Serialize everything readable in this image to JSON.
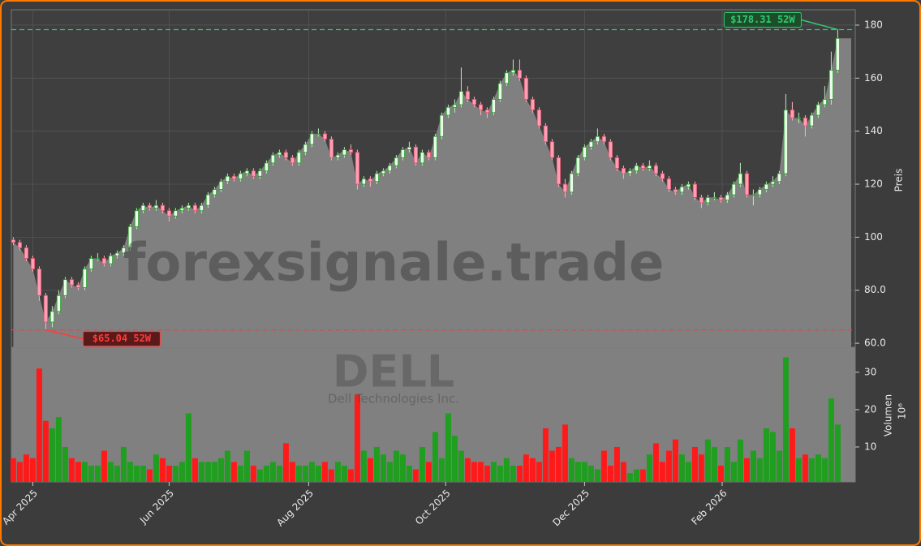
{
  "chart_data": {
    "type": "candlestick",
    "watermark": "forexsignale.trade",
    "symbol": "DELL",
    "company": "Dell Technologies Inc.",
    "ylabel": "Preis",
    "volume_label": "Volumen",
    "volume_exponent": "10⁶",
    "xlim": [
      -0.3,
      129.7
    ],
    "xticks": [
      {
        "value": 3,
        "label": "Apr 2025"
      },
      {
        "value": 24,
        "label": "Jun 2025"
      },
      {
        "value": 45.5,
        "label": "Aug 2025"
      },
      {
        "value": 66.6,
        "label": "Oct 2025"
      },
      {
        "value": 88,
        "label": "Dec 2025"
      },
      {
        "value": 109.2,
        "label": "Feb 2026"
      }
    ],
    "ylim": [
      58.5,
      185.8
    ],
    "yticks": [
      {
        "value": 60,
        "label": "60.0"
      },
      {
        "value": 80,
        "label": "80.0"
      },
      100,
      120,
      140,
      160,
      180
    ],
    "vlim": [
      0.65,
      36.7
    ],
    "vticks": [
      10,
      20,
      30
    ],
    "grid": true,
    "up_color": "#1f9e1f",
    "down_color": "#ff1a1a",
    "up_body": "#eafbea",
    "down_body": "#ff9fb4",
    "fill_color": "#808080",
    "ohlc": [
      [
        99,
        100,
        97,
        98
      ],
      [
        98,
        99,
        95,
        96
      ],
      [
        96,
        97,
        91,
        92
      ],
      [
        92,
        93,
        87,
        88
      ],
      [
        88,
        89,
        76,
        78
      ],
      [
        78,
        79,
        65.04,
        68
      ],
      [
        68,
        74,
        66,
        72
      ],
      [
        72,
        80,
        71,
        78
      ],
      [
        78,
        85,
        77,
        84
      ],
      [
        84,
        85,
        81,
        82
      ],
      [
        82,
        83,
        80,
        81
      ],
      [
        81,
        89,
        80,
        88
      ],
      [
        88,
        93,
        87,
        92
      ],
      [
        92,
        94,
        91,
        92
      ],
      [
        92,
        93,
        89,
        90
      ],
      [
        90,
        94,
        89,
        93
      ],
      [
        93,
        95,
        92,
        94
      ],
      [
        94,
        97,
        93,
        96
      ],
      [
        96,
        105,
        95,
        104
      ],
      [
        104,
        111,
        103,
        110
      ],
      [
        110,
        113,
        109,
        112
      ],
      [
        112,
        113,
        110,
        111
      ],
      [
        111,
        114,
        110,
        112
      ],
      [
        112,
        113,
        109,
        110
      ],
      [
        110,
        111,
        106,
        108
      ],
      [
        108,
        111,
        107,
        110
      ],
      [
        110,
        112,
        109,
        111
      ],
      [
        111,
        113,
        110,
        112
      ],
      [
        112,
        113,
        109,
        110
      ],
      [
        110,
        113,
        109,
        112
      ],
      [
        112,
        117,
        111,
        116
      ],
      [
        116,
        119,
        115,
        118
      ],
      [
        118,
        122,
        117,
        121
      ],
      [
        121,
        124,
        120,
        123
      ],
      [
        123,
        124,
        121,
        122
      ],
      [
        122,
        125,
        121,
        124
      ],
      [
        124,
        126,
        123,
        125
      ],
      [
        125,
        126,
        122,
        123
      ],
      [
        123,
        126,
        122,
        125
      ],
      [
        125,
        129,
        124,
        128
      ],
      [
        128,
        132,
        127,
        131
      ],
      [
        131,
        133,
        130,
        132
      ],
      [
        132,
        133,
        129,
        130
      ],
      [
        130,
        131,
        127,
        128
      ],
      [
        128,
        133,
        127,
        132
      ],
      [
        132,
        136,
        131,
        135
      ],
      [
        135,
        140,
        134,
        139
      ],
      [
        139,
        141,
        138,
        139
      ],
      [
        139,
        140,
        136,
        137
      ],
      [
        137,
        138,
        129,
        130
      ],
      [
        130,
        132,
        129,
        131
      ],
      [
        131,
        134,
        130,
        133
      ],
      [
        133,
        135,
        131,
        132
      ],
      [
        132,
        133,
        118,
        120
      ],
      [
        120,
        123,
        119,
        122
      ],
      [
        122,
        123,
        119,
        121
      ],
      [
        121,
        125,
        120,
        124
      ],
      [
        124,
        126,
        123,
        125
      ],
      [
        125,
        128,
        124,
        127
      ],
      [
        127,
        131,
        126,
        130
      ],
      [
        130,
        134,
        129,
        133
      ],
      [
        133,
        136,
        132,
        134
      ],
      [
        134,
        135,
        127,
        128
      ],
      [
        128,
        133,
        127,
        132
      ],
      [
        132,
        133,
        129,
        130
      ],
      [
        130,
        139,
        129,
        138
      ],
      [
        138,
        147,
        137,
        146
      ],
      [
        146,
        150,
        145,
        149
      ],
      [
        149,
        152,
        147,
        150
      ],
      [
        150,
        164,
        149,
        155
      ],
      [
        155,
        157,
        151,
        152
      ],
      [
        152,
        153,
        149,
        150
      ],
      [
        150,
        151,
        146,
        148
      ],
      [
        148,
        149,
        145,
        147
      ],
      [
        147,
        153,
        146,
        152
      ],
      [
        152,
        159,
        151,
        158
      ],
      [
        158,
        163,
        157,
        162
      ],
      [
        162,
        167,
        161,
        163
      ],
      [
        163,
        167,
        159,
        160
      ],
      [
        160,
        161,
        151,
        152
      ],
      [
        152,
        153,
        147,
        148
      ],
      [
        148,
        149,
        141,
        142
      ],
      [
        142,
        143,
        135,
        136
      ],
      [
        136,
        137,
        129,
        130
      ],
      [
        130,
        131,
        119,
        120
      ],
      [
        120,
        122,
        115,
        117
      ],
      [
        117,
        125,
        116,
        124
      ],
      [
        124,
        131,
        123,
        130
      ],
      [
        130,
        135,
        129,
        134
      ],
      [
        134,
        137,
        133,
        136
      ],
      [
        136,
        141,
        135,
        138
      ],
      [
        138,
        139,
        135,
        136
      ],
      [
        136,
        137,
        129,
        130
      ],
      [
        130,
        131,
        125,
        126
      ],
      [
        126,
        127,
        122,
        124
      ],
      [
        124,
        126,
        123,
        125
      ],
      [
        125,
        128,
        124,
        127
      ],
      [
        127,
        128,
        125,
        126
      ],
      [
        126,
        129,
        125,
        127
      ],
      [
        127,
        128,
        123,
        124
      ],
      [
        124,
        125,
        121,
        122
      ],
      [
        122,
        123,
        117,
        118
      ],
      [
        118,
        119,
        116,
        117
      ],
      [
        117,
        120,
        116,
        119
      ],
      [
        119,
        121,
        118,
        120
      ],
      [
        120,
        121,
        114,
        115
      ],
      [
        115,
        116,
        111,
        113
      ],
      [
        113,
        116,
        112,
        115
      ],
      [
        115,
        117,
        114,
        115
      ],
      [
        115,
        116,
        113,
        114
      ],
      [
        114,
        117,
        113,
        116
      ],
      [
        116,
        121,
        115,
        120
      ],
      [
        120,
        128,
        119,
        124
      ],
      [
        124,
        125,
        115,
        116
      ],
      [
        116,
        118,
        112,
        116
      ],
      [
        116,
        119,
        115,
        118
      ],
      [
        118,
        121,
        117,
        120
      ],
      [
        120,
        123,
        119,
        121
      ],
      [
        121,
        125,
        120,
        124
      ],
      [
        124,
        154,
        123,
        148
      ],
      [
        148,
        151,
        144,
        145
      ],
      [
        145,
        147,
        143,
        145
      ],
      [
        145,
        146,
        138,
        142
      ],
      [
        142,
        147,
        141,
        146
      ],
      [
        146,
        151,
        145,
        150
      ],
      [
        150,
        157,
        149,
        152
      ],
      [
        152,
        170,
        150,
        163
      ],
      [
        163,
        178.31,
        162,
        175
      ]
    ],
    "volume": [
      7,
      6,
      8,
      7,
      31,
      17,
      15,
      18,
      10,
      7,
      6,
      6,
      5,
      5,
      9,
      6,
      5,
      10,
      6,
      5,
      5,
      4,
      8,
      7,
      5,
      5,
      6,
      19,
      7,
      6,
      6,
      6,
      7,
      9,
      6,
      5,
      9,
      5,
      4,
      5,
      6,
      5,
      11,
      6,
      5,
      5,
      6,
      5,
      6,
      4,
      6,
      5,
      4,
      24,
      9,
      7,
      10,
      8,
      6,
      9,
      8,
      5,
      4,
      10,
      6,
      14,
      7,
      19,
      13,
      9,
      7,
      6,
      6,
      5,
      6,
      5,
      7,
      5,
      5,
      8,
      7,
      6,
      15,
      9,
      10,
      16,
      7,
      6,
      6,
      5,
      4,
      9,
      5,
      10,
      6,
      3,
      4,
      4,
      8,
      11,
      6,
      9,
      12,
      8,
      6,
      10,
      8,
      12,
      10,
      5,
      10,
      6,
      12,
      7,
      9,
      7,
      15,
      14,
      9,
      34,
      15,
      7,
      8,
      7,
      8,
      7,
      23,
      16
    ],
    "annotations": [
      {
        "text": "$178.31 52W",
        "value": 178.31,
        "index": 127,
        "color": "#2ecc71"
      },
      {
        "text": "$65.04 52W",
        "value": 65.04,
        "index": 5,
        "color": "#ff3b3b"
      }
    ]
  }
}
